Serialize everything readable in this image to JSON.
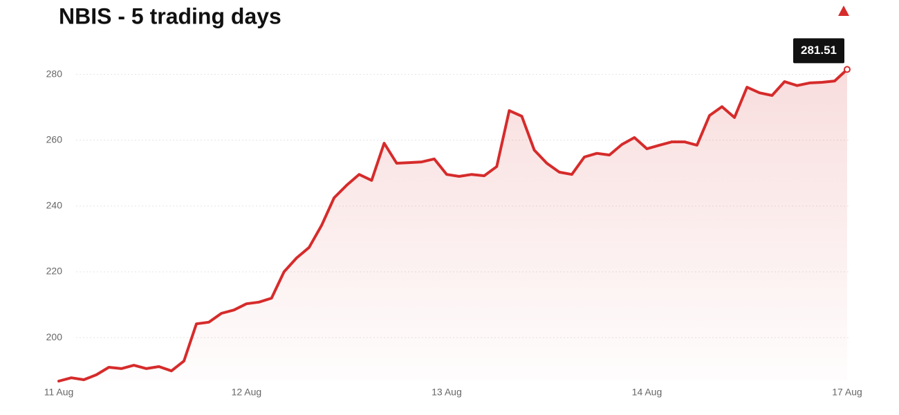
{
  "chart_data": {
    "type": "line",
    "title": "NBIS - 5 trading days",
    "categories": [
      "11 Aug",
      null,
      null,
      null,
      null,
      null,
      null,
      null,
      null,
      null,
      null,
      null,
      null,
      null,
      null,
      "12 Aug",
      null,
      null,
      null,
      null,
      null,
      null,
      null,
      null,
      null,
      null,
      null,
      null,
      null,
      null,
      null,
      "13 Aug",
      null,
      null,
      null,
      null,
      null,
      null,
      null,
      null,
      null,
      null,
      null,
      null,
      null,
      null,
      null,
      "14 Aug",
      null,
      null,
      null,
      null,
      null,
      null,
      null,
      null,
      null,
      null,
      null,
      null,
      null,
      null,
      null,
      "17 Aug"
    ],
    "values": [
      186.8,
      187.8,
      187.2,
      188.7,
      191.0,
      190.6,
      191.6,
      190.6,
      191.2,
      189.9,
      192.9,
      204.2,
      204.7,
      207.4,
      208.4,
      210.3,
      210.8,
      212.0,
      220.0,
      224.2,
      227.4,
      234.1,
      242.5,
      246.3,
      249.6,
      247.8,
      259.1,
      253.0,
      253.2,
      253.4,
      254.3,
      249.6,
      249.0,
      249.6,
      249.2,
      252.0,
      269.0,
      267.3,
      257.0,
      253.0,
      250.3,
      249.6,
      254.9,
      256.0,
      255.5,
      258.7,
      260.8,
      257.4,
      258.5,
      259.5,
      259.5,
      258.5,
      267.5,
      270.2,
      266.9,
      276.1,
      274.4,
      273.6,
      277.8,
      276.6,
      277.4,
      277.6,
      278.0,
      281.51
    ],
    "color": "#d62b2b",
    "ylim": [
      187,
      290
    ],
    "yticks": [
      200,
      220,
      240,
      260,
      280
    ],
    "grid": true
  }
}
